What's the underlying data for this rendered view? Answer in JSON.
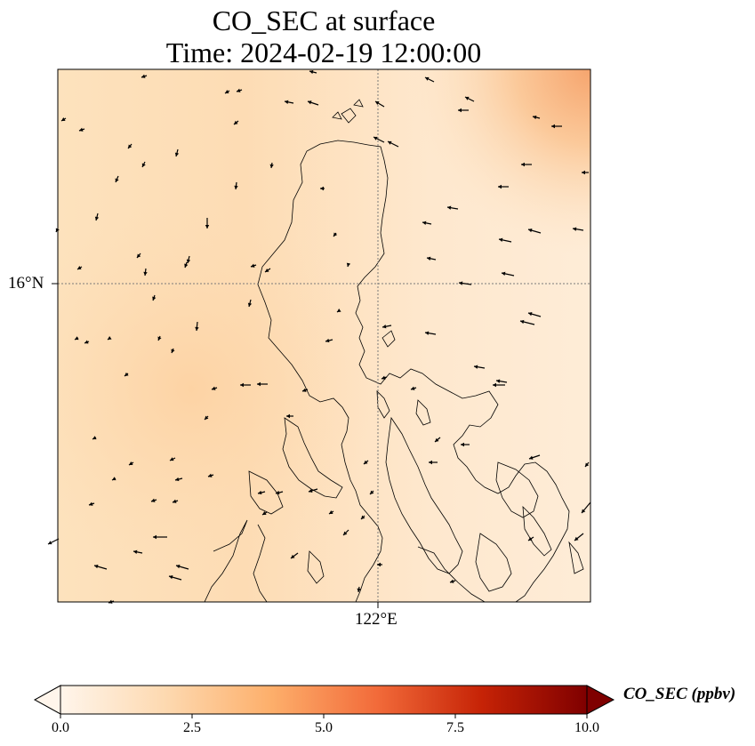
{
  "title": {
    "line1": "CO_SEC at surface",
    "line2": "Time: 2024-02-19 12:00:00"
  },
  "axes": {
    "lat_label": "16°N",
    "lon_label": "122°E"
  },
  "colorbar": {
    "label": "CO_SEC (ppbv)",
    "ticks": [
      "0.0",
      "2.5",
      "5.0",
      "7.5",
      "10.0"
    ],
    "colormap": [
      "#fff5eb",
      "#fdd9b0",
      "#fdaf6b",
      "#f26b3a",
      "#c62306",
      "#7f0000"
    ],
    "range": [
      0,
      10
    ]
  },
  "colors": {
    "background_field": "#fde6c8",
    "coastline": "#000000",
    "gridline": "#7a7a7a",
    "high_corner": "#f6a56e"
  }
}
